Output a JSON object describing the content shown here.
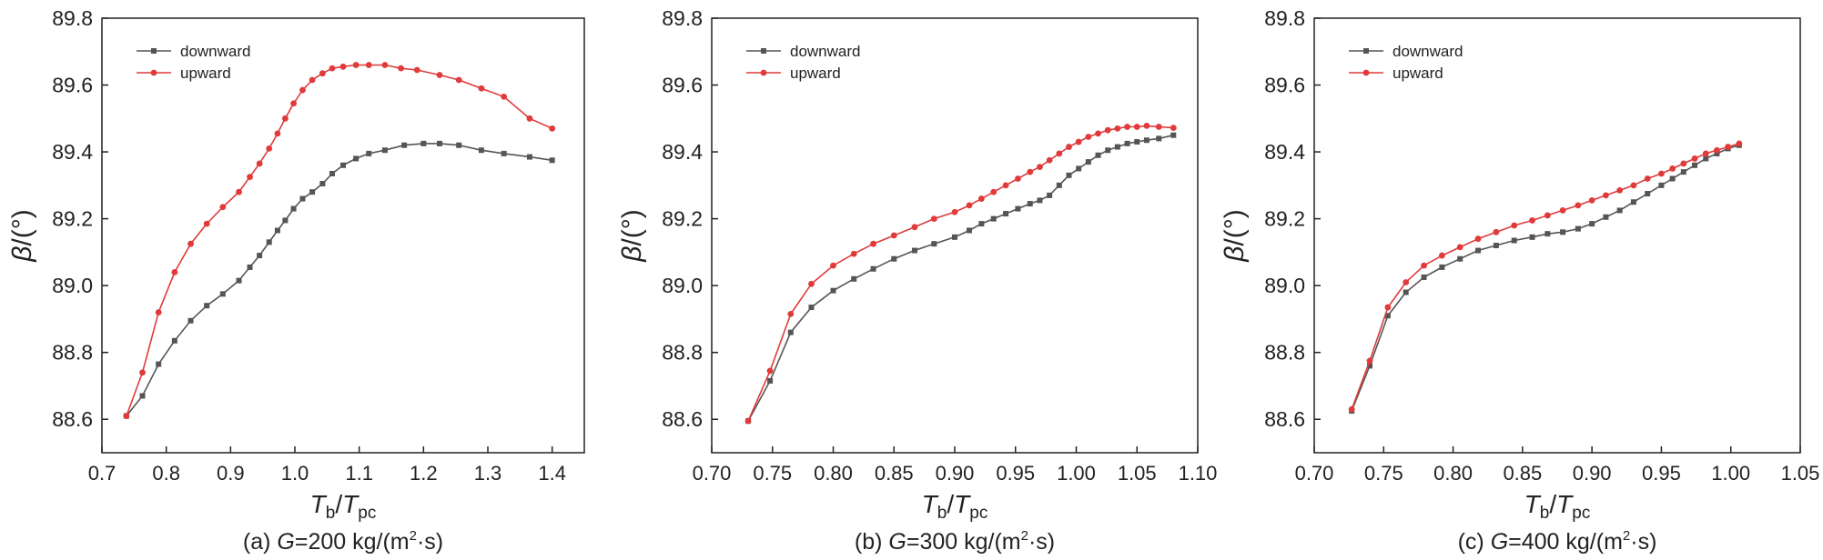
{
  "colors": {
    "downward": "#555555",
    "upward": "#e03a3a",
    "axis": "#222222"
  },
  "chart_data": [
    {
      "type": "line",
      "caption": {
        "prefix": "(a) ",
        "var": "G",
        "rest": "=200 kg/(m",
        "sup": "2",
        "suffix": "·s)"
      },
      "xlim": [
        0.7,
        1.45
      ],
      "xticks": [
        0.7,
        0.8,
        0.9,
        1.0,
        1.1,
        1.2,
        1.3,
        1.4
      ],
      "xtick_labels": [
        "0.7",
        "0.8",
        "0.9",
        "1.0",
        "1.1",
        "1.2",
        "1.3",
        "1.4"
      ],
      "ylim": [
        88.5,
        89.8
      ],
      "yticks": [
        88.6,
        88.8,
        89.0,
        89.2,
        89.4,
        89.6,
        89.8
      ],
      "ytick_labels": [
        "88.6",
        "88.8",
        "89.0",
        "89.2",
        "89.4",
        "89.6",
        "89.8"
      ],
      "ylabel": {
        "sym": "β",
        "unit": "/(°)"
      },
      "xlabel": {
        "a": "T",
        "a_sub": "b",
        "sep": "/",
        "b": "T",
        "b_sub": "pc"
      },
      "legend_position": "top-left",
      "series": [
        {
          "name": "downward",
          "marker": "square",
          "x": [
            0.738,
            0.763,
            0.788,
            0.813,
            0.838,
            0.863,
            0.888,
            0.913,
            0.93,
            0.945,
            0.96,
            0.973,
            0.985,
            0.998,
            1.012,
            1.027,
            1.043,
            1.058,
            1.075,
            1.095,
            1.115,
            1.14,
            1.17,
            1.2,
            1.225,
            1.255,
            1.29,
            1.325,
            1.365,
            1.4
          ],
          "y": [
            88.61,
            88.67,
            88.765,
            88.835,
            88.895,
            88.94,
            88.975,
            89.015,
            89.055,
            89.09,
            89.13,
            89.165,
            89.195,
            89.23,
            89.26,
            89.28,
            89.305,
            89.335,
            89.36,
            89.38,
            89.395,
            89.405,
            89.42,
            89.425,
            89.425,
            89.42,
            89.405,
            89.395,
            89.385,
            89.375
          ]
        },
        {
          "name": "upward",
          "marker": "circle",
          "x": [
            0.738,
            0.763,
            0.788,
            0.813,
            0.838,
            0.863,
            0.888,
            0.913,
            0.93,
            0.945,
            0.96,
            0.973,
            0.985,
            0.998,
            1.012,
            1.027,
            1.043,
            1.058,
            1.075,
            1.095,
            1.115,
            1.14,
            1.165,
            1.19,
            1.225,
            1.255,
            1.29,
            1.325,
            1.365,
            1.4
          ],
          "y": [
            88.61,
            88.74,
            88.92,
            89.04,
            89.125,
            89.185,
            89.235,
            89.28,
            89.325,
            89.365,
            89.41,
            89.455,
            89.5,
            89.545,
            89.585,
            89.615,
            89.635,
            89.65,
            89.655,
            89.66,
            89.66,
            89.66,
            89.65,
            89.645,
            89.63,
            89.615,
            89.59,
            89.565,
            89.5,
            89.47
          ]
        }
      ]
    },
    {
      "type": "line",
      "caption": {
        "prefix": "(b) ",
        "var": "G",
        "rest": "=300 kg/(m",
        "sup": "2",
        "suffix": "·s)"
      },
      "xlim": [
        0.7,
        1.1
      ],
      "xticks": [
        0.7,
        0.75,
        0.8,
        0.85,
        0.9,
        0.95,
        1.0,
        1.05,
        1.1
      ],
      "xtick_labels": [
        "0.70",
        "0.75",
        "0.80",
        "0.85",
        "0.90",
        "0.95",
        "1.00",
        "1.05",
        "1.10"
      ],
      "ylim": [
        88.5,
        89.8
      ],
      "yticks": [
        88.6,
        88.8,
        89.0,
        89.2,
        89.4,
        89.6,
        89.8
      ],
      "ytick_labels": [
        "88.6",
        "88.8",
        "89.0",
        "89.2",
        "89.4",
        "89.6",
        "89.8"
      ],
      "ylabel": {
        "sym": "β",
        "unit": "/(°)"
      },
      "xlabel": {
        "a": "T",
        "a_sub": "b",
        "sep": "/",
        "b": "T",
        "b_sub": "pc"
      },
      "legend_position": "top-left",
      "series": [
        {
          "name": "downward",
          "marker": "square",
          "x": [
            0.73,
            0.748,
            0.765,
            0.782,
            0.8,
            0.817,
            0.833,
            0.85,
            0.867,
            0.883,
            0.9,
            0.912,
            0.922,
            0.932,
            0.942,
            0.952,
            0.962,
            0.97,
            0.978,
            0.986,
            0.994,
            1.002,
            1.01,
            1.018,
            1.026,
            1.034,
            1.042,
            1.05,
            1.058,
            1.068,
            1.08
          ],
          "y": [
            88.595,
            88.715,
            88.86,
            88.935,
            88.985,
            89.02,
            89.05,
            89.08,
            89.105,
            89.125,
            89.145,
            89.165,
            89.185,
            89.2,
            89.215,
            89.23,
            89.245,
            89.255,
            89.27,
            89.3,
            89.33,
            89.35,
            89.37,
            89.39,
            89.405,
            89.415,
            89.425,
            89.43,
            89.435,
            89.44,
            89.45
          ]
        },
        {
          "name": "upward",
          "marker": "circle",
          "x": [
            0.73,
            0.748,
            0.765,
            0.782,
            0.8,
            0.817,
            0.833,
            0.85,
            0.867,
            0.883,
            0.9,
            0.912,
            0.922,
            0.932,
            0.942,
            0.952,
            0.962,
            0.97,
            0.978,
            0.986,
            0.994,
            1.002,
            1.01,
            1.018,
            1.026,
            1.034,
            1.042,
            1.05,
            1.058,
            1.068,
            1.08
          ],
          "y": [
            88.595,
            88.745,
            88.915,
            89.005,
            89.06,
            89.095,
            89.125,
            89.15,
            89.175,
            89.2,
            89.22,
            89.24,
            89.26,
            89.28,
            89.3,
            89.32,
            89.34,
            89.355,
            89.375,
            89.395,
            89.415,
            89.43,
            89.445,
            89.455,
            89.465,
            89.47,
            89.475,
            89.475,
            89.478,
            89.475,
            89.472
          ]
        }
      ]
    },
    {
      "type": "line",
      "caption": {
        "prefix": "(c) ",
        "var": "G",
        "rest": "=400 kg/(m",
        "sup": "2",
        "suffix": "·s)"
      },
      "xlim": [
        0.7,
        1.05
      ],
      "xticks": [
        0.7,
        0.75,
        0.8,
        0.85,
        0.9,
        0.95,
        1.0,
        1.05
      ],
      "xtick_labels": [
        "0.70",
        "0.75",
        "0.80",
        "0.85",
        "0.90",
        "0.95",
        "1.00",
        "1.05"
      ],
      "ylim": [
        88.5,
        89.8
      ],
      "yticks": [
        88.6,
        88.8,
        89.0,
        89.2,
        89.4,
        89.6,
        89.8
      ],
      "ytick_labels": [
        "88.6",
        "88.8",
        "89.0",
        "89.2",
        "89.4",
        "89.6",
        "89.8"
      ],
      "ylabel": {
        "sym": "β",
        "unit": "/(°)"
      },
      "xlabel": {
        "a": "T",
        "a_sub": "b",
        "sep": "/",
        "b": "T",
        "b_sub": "pc"
      },
      "legend_position": "top-left",
      "series": [
        {
          "name": "downward",
          "marker": "square",
          "x": [
            0.727,
            0.74,
            0.753,
            0.766,
            0.779,
            0.792,
            0.805,
            0.818,
            0.831,
            0.844,
            0.857,
            0.868,
            0.879,
            0.89,
            0.9,
            0.91,
            0.92,
            0.93,
            0.94,
            0.95,
            0.958,
            0.966,
            0.974,
            0.982,
            0.99,
            0.998,
            1.006
          ],
          "y": [
            88.625,
            88.76,
            88.91,
            88.98,
            89.025,
            89.055,
            89.08,
            89.105,
            89.12,
            89.135,
            89.145,
            89.155,
            89.16,
            89.17,
            89.185,
            89.205,
            89.225,
            89.25,
            89.275,
            89.3,
            89.32,
            89.34,
            89.36,
            89.38,
            89.395,
            89.41,
            89.42
          ]
        },
        {
          "name": "upward",
          "marker": "circle",
          "x": [
            0.727,
            0.74,
            0.753,
            0.766,
            0.779,
            0.792,
            0.805,
            0.818,
            0.831,
            0.844,
            0.857,
            0.868,
            0.879,
            0.89,
            0.9,
            0.91,
            0.92,
            0.93,
            0.94,
            0.95,
            0.958,
            0.966,
            0.974,
            0.982,
            0.99,
            0.998,
            1.006
          ],
          "y": [
            88.63,
            88.775,
            88.935,
            89.01,
            89.06,
            89.09,
            89.115,
            89.14,
            89.16,
            89.18,
            89.195,
            89.21,
            89.225,
            89.24,
            89.255,
            89.27,
            89.285,
            89.3,
            89.32,
            89.335,
            89.35,
            89.365,
            89.38,
            89.395,
            89.405,
            89.415,
            89.425
          ]
        }
      ]
    }
  ]
}
